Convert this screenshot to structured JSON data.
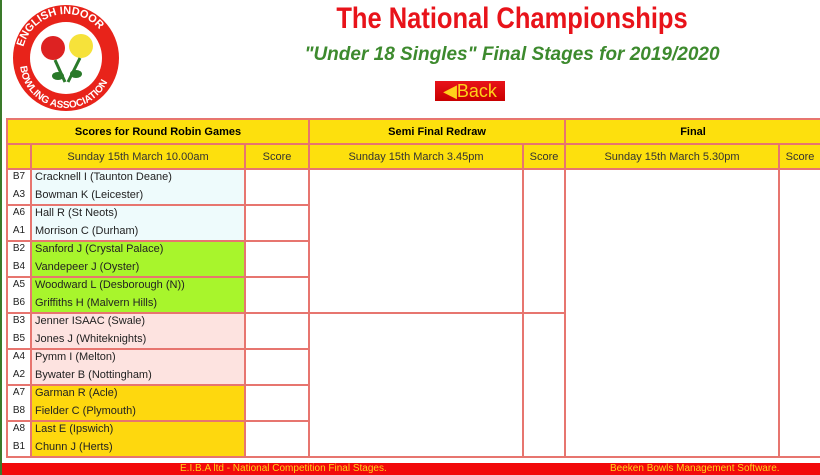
{
  "header": {
    "title": "The National Championships",
    "subtitle": "\"Under 18 Singles\" Final Stages for 2019/2020",
    "back_label": "Back",
    "logo_text": "ENGLISH INDOOR BOWLING ASSOCIATION"
  },
  "table": {
    "groups": [
      "Scores for Round Robin Games",
      "Semi Final Redraw",
      "Final"
    ],
    "dates": [
      "Sunday 15th March 10.00am",
      "Sunday 15th March 3.45pm",
      "Sunday 15th March 5.30pm"
    ],
    "score_label": "Score",
    "games": [
      {
        "seeds": [
          "B7",
          "A3"
        ],
        "players": [
          "Cracknell I (Taunton Deane)",
          "Bowman K (Leicester)"
        ],
        "color": "#eefbfc"
      },
      {
        "seeds": [
          "A6",
          "A1"
        ],
        "players": [
          "Hall R (St Neots)",
          "Morrison C (Durham)"
        ],
        "color": "#eefbfc"
      },
      {
        "seeds": [
          "B2",
          "B4"
        ],
        "players": [
          "Sanford J (Crystal Palace)",
          "Vandepeer J (Oyster)"
        ],
        "color": "#a8f52c"
      },
      {
        "seeds": [
          "A5",
          "B6"
        ],
        "players": [
          "Woodward L (Desborough (N))",
          "Griffiths H (Malvern Hills)"
        ],
        "color": "#a8f52c"
      },
      {
        "seeds": [
          "B3",
          "B5"
        ],
        "players": [
          "Jenner ISAAC (Swale)",
          "Jones J (Whiteknights)"
        ],
        "color": "#fde3e0"
      },
      {
        "seeds": [
          "A4",
          "A2"
        ],
        "players": [
          "Pymm I (Melton)",
          "Bywater B (Nottingham)"
        ],
        "color": "#fde3e0"
      },
      {
        "seeds": [
          "A7",
          "B8"
        ],
        "players": [
          "Garman R (Acle)",
          "Fielder C (Plymouth)"
        ],
        "color": "#fed80e"
      },
      {
        "seeds": [
          "A8",
          "B1"
        ],
        "players": [
          "Last E (Ipswich)",
          "Chunn J (Herts)"
        ],
        "color": "#fed80e"
      }
    ]
  },
  "footer": {
    "left": "E.I.B.A ltd - National Competition Final Stages.",
    "right": "Beeken Bowls Management Software."
  },
  "colors": {
    "title": "#e8131a",
    "subtitle": "#3d8a2e",
    "header_bg": "#fde00d",
    "border": "#e7756f",
    "footer_bg": "#f20a0a"
  }
}
